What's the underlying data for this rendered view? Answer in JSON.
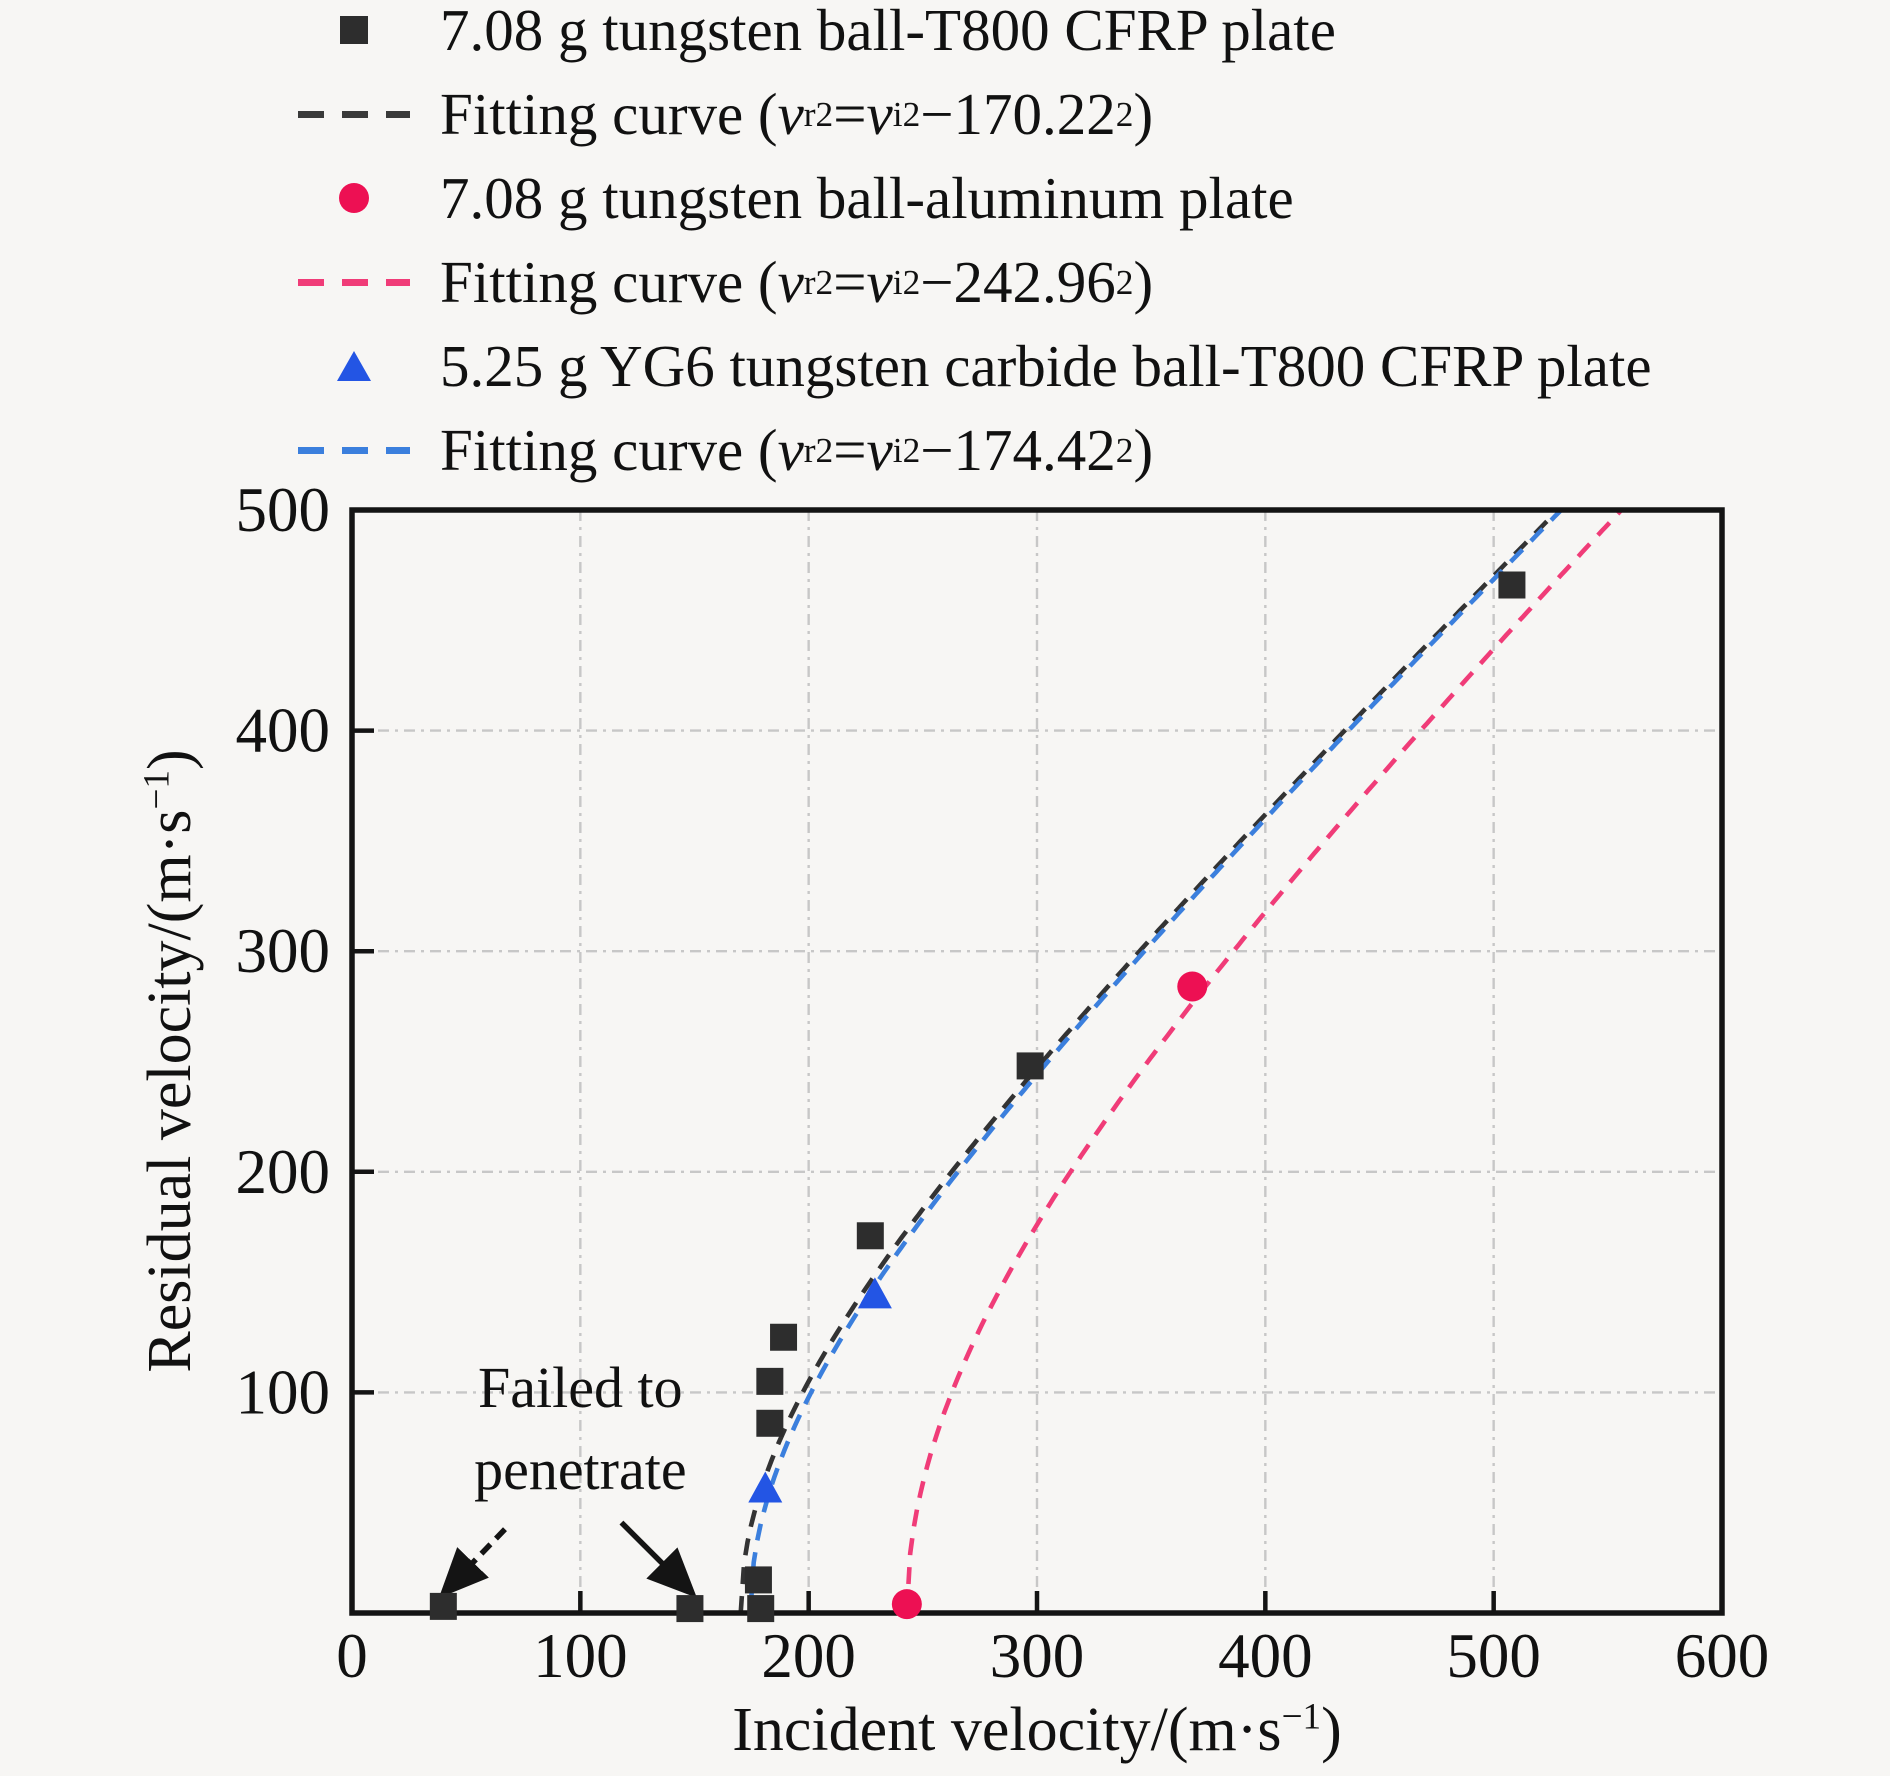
{
  "figure": {
    "background": "#f7f6f4",
    "frame_color": "#141414",
    "grid_color": "#c7c7c7",
    "legend": {
      "items": [
        {
          "type": "square",
          "color": "#2d2d2d",
          "label_html": "7.08 g tungsten ball-T800 CFRP plate"
        },
        {
          "type": "dash",
          "color": "#3a3a3a",
          "label_html": "Fitting curve (<i>v</i><sub>r</sub><sup>2</sup>=<i>v</i><sub>i</sub><sup>2</sup>−170.22<sup>2</sup>)"
        },
        {
          "type": "circle",
          "color": "#ed1053",
          "label_html": "7.08 g tungsten ball-aluminum plate"
        },
        {
          "type": "dash",
          "color": "#f03c78",
          "label_html": "Fitting curve (<i>v</i><sub>r</sub><sup>2</sup>=<i>v</i><sub>i</sub><sup>2</sup>−242.96<sup>2</sup>)"
        },
        {
          "type": "triangle",
          "color": "#2355e4",
          "label_html": "5.25 g YG6 tungsten carbide ball-T800 CFRP plate"
        },
        {
          "type": "dash",
          "color": "#3b7fdd",
          "label_html": "Fitting curve (<i>v</i><sub>r</sub><sup>2</sup>=<i>v</i><sub>i</sub><sup>2</sup>−174.42<sup>2</sup>)"
        }
      ]
    }
  },
  "chart_data": {
    "type": "scatter",
    "title": "",
    "xlabel_html": "Incident velocity/(m·s<sup>−1</sup>)",
    "ylabel_html": "Residual velocity/(m·s<sup>−1</sup>)",
    "xlabel_text": "Incident velocity/(m·s−1)",
    "ylabel_text": "Residual velocity/(m·s−1)",
    "xlim": [
      0,
      600
    ],
    "ylim": [
      0,
      500
    ],
    "xticks": [
      0,
      100,
      200,
      300,
      400,
      500,
      600
    ],
    "yticks": [
      100,
      200,
      300,
      400,
      500
    ],
    "grid": true,
    "legend_position": "top-left-outside",
    "series": [
      {
        "name": "7.08 g tungsten ball-T800 CFRP plate",
        "marker": "square",
        "color": "#2d2d2d",
        "points": [
          [
            40,
            3
          ],
          [
            148,
            2
          ],
          [
            179,
            2
          ],
          [
            178,
            15
          ],
          [
            183,
            86
          ],
          [
            183,
            105
          ],
          [
            189,
            125
          ],
          [
            227,
            171
          ],
          [
            297,
            248
          ],
          [
            508,
            466
          ]
        ]
      },
      {
        "name": "7.08 g tungsten ball-aluminum plate",
        "marker": "circle",
        "color": "#ed1053",
        "points": [
          [
            243,
            4
          ],
          [
            368,
            284
          ]
        ]
      },
      {
        "name": "5.25 g YG6 tungsten carbide ball-T800 CFRP plate",
        "marker": "triangle",
        "color": "#2355e4",
        "points": [
          [
            181,
            56
          ],
          [
            229,
            144
          ]
        ]
      }
    ],
    "curves": [
      {
        "name": "Fitting curve (vr^2=vi^2−170.22^2)",
        "ballistic_limit": 170.22,
        "color": "#333333",
        "dash": "17 12",
        "dashoffset": 0
      },
      {
        "name": "Fitting curve (vr^2=vi^2−242.96^2)",
        "ballistic_limit": 242.96,
        "color": "#f03c78",
        "dash": "17 12",
        "dashoffset": 0
      },
      {
        "name": "Fitting curve (vr^2=vi^2−174.42^2)",
        "ballistic_limit": 174.42,
        "color": "#3b7fdd",
        "dash": "17 12",
        "dashoffset": 14
      }
    ],
    "annotation": {
      "lines": [
        "Failed to",
        "penetrate"
      ],
      "line_centers_data": [
        [
          100,
          102
        ],
        [
          100,
          65
        ]
      ],
      "arrows": [
        {
          "from": [
            67,
            38
          ],
          "to": [
            41,
            10
          ],
          "dashed": true
        },
        {
          "from": [
            118,
            41
          ],
          "to": [
            148,
            10
          ],
          "dashed": false
        }
      ]
    }
  }
}
